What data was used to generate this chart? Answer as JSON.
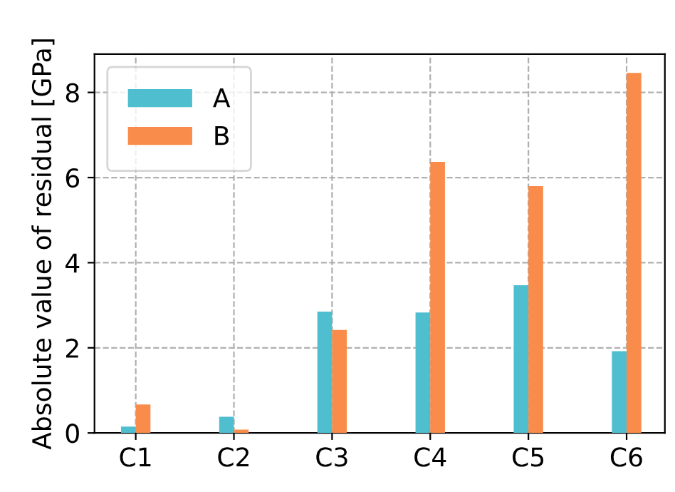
{
  "chart_data": {
    "type": "bar",
    "ylabel": "Absolute value of residual [GPa]",
    "categories": [
      "C1",
      "C2",
      "C3",
      "C4",
      "C5",
      "C6"
    ],
    "series": [
      {
        "name": "A",
        "color": "#4fbfd0",
        "values": [
          0.15,
          0.38,
          2.85,
          2.83,
          3.47,
          1.92
        ]
      },
      {
        "name": "B",
        "color": "#f98c4a",
        "values": [
          0.67,
          0.08,
          2.42,
          6.37,
          5.8,
          8.46
        ]
      }
    ],
    "ylim": [
      0,
      8.9
    ],
    "yticks": [
      0,
      2,
      4,
      6,
      8
    ],
    "grid": true,
    "legend": "top left"
  }
}
